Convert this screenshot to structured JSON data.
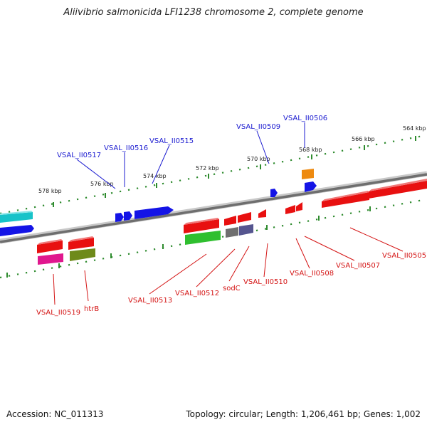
{
  "header": {
    "title": "Aliivibrio salmonicida LFI1238 chromosome 2, complete genome"
  },
  "footer": {
    "accession": "Accession: NC_011313",
    "topology": "Topology: circular; Length: 1,206,461 bp; Genes: 1,002"
  },
  "ruler": {
    "ticks": [
      "578 kbp",
      "576 kbp",
      "574 kbp",
      "572 kbp",
      "570 kbp",
      "568 kbp",
      "566 kbp",
      "564 kbp"
    ]
  },
  "labels": {
    "forward": [
      "VSAL_II0517",
      "VSAL_II0516",
      "VSAL_II0515",
      "VSAL_II0509",
      "VSAL_II0506"
    ],
    "reverse": [
      "VSAL_II0519",
      "htrB",
      "VSAL_II0513",
      "VSAL_II0512",
      "sodC",
      "VSAL_II0510",
      "VSAL_II0508",
      "VSAL_II0507",
      "VSAL_II0505"
    ]
  },
  "colors": {
    "forward_label": "#1b1bd0",
    "reverse_label": "#d41414",
    "ruler": "#2e8b2e",
    "backbone": "#777777",
    "gene_red": "#e81010",
    "gene_blue": "#1414e6",
    "gene_cyan": "#17c3c9",
    "gene_green": "#2fbf2f",
    "gene_magenta": "#e0188e",
    "gene_olive": "#6e8a1a",
    "gene_gray": "#6f6f6f",
    "gene_slate": "#55558f",
    "gene_orange": "#ee8a10"
  }
}
